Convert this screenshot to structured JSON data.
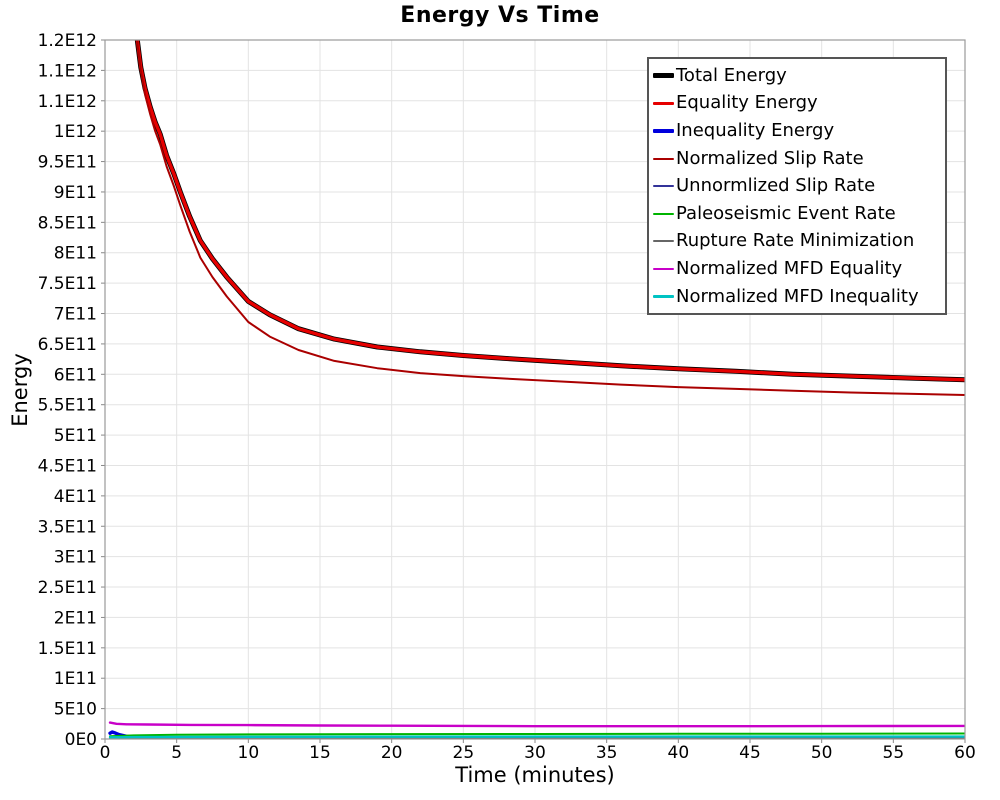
{
  "chart_data": {
    "type": "line",
    "title": "Energy Vs Time",
    "xlabel": "Time (minutes)",
    "ylabel": "Energy",
    "xlim": [
      0,
      60
    ],
    "ylim": [
      0,
      1150000000000.0
    ],
    "grid": true,
    "legend_position": "top-right",
    "x_ticks": [
      0,
      5,
      10,
      15,
      20,
      25,
      30,
      35,
      40,
      45,
      50,
      55,
      60
    ],
    "y_ticks": [
      {
        "label": "1.2E12",
        "value": 1150000000000.0
      },
      {
        "label": "1.1E12",
        "value": 1100000000000.0
      },
      {
        "label": "1.1E12",
        "value": 1050000000000.0
      },
      {
        "label": "1E12",
        "value": 1000000000000.0
      },
      {
        "label": "9.5E11",
        "value": 950000000000.0
      },
      {
        "label": "9E11",
        "value": 900000000000.0
      },
      {
        "label": "8.5E11",
        "value": 850000000000.0
      },
      {
        "label": "8E11",
        "value": 800000000000.0
      },
      {
        "label": "7.5E11",
        "value": 750000000000.0
      },
      {
        "label": "7E11",
        "value": 700000000000.0
      },
      {
        "label": "6.5E11",
        "value": 650000000000.0
      },
      {
        "label": "6E11",
        "value": 600000000000.0
      },
      {
        "label": "5.5E11",
        "value": 550000000000.0
      },
      {
        "label": "5E11",
        "value": 500000000000.0
      },
      {
        "label": "4.5E11",
        "value": 450000000000.0
      },
      {
        "label": "4E11",
        "value": 400000000000.0
      },
      {
        "label": "3.5E11",
        "value": 350000000000.0
      },
      {
        "label": "3E11",
        "value": 300000000000.0
      },
      {
        "label": "2.5E11",
        "value": 250000000000.0
      },
      {
        "label": "2E11",
        "value": 200000000000.0
      },
      {
        "label": "1.5E11",
        "value": 150000000000.0
      },
      {
        "label": "1E11",
        "value": 100000000000.0
      },
      {
        "label": "5E10",
        "value": 50000000000.0
      },
      {
        "label": "0E0",
        "value": 0
      }
    ],
    "series": [
      {
        "name": "Total Energy",
        "color": "#000000",
        "stroke_width": 5,
        "x": [
          2.0,
          2.25,
          2.5,
          2.8,
          3.15,
          3.5,
          3.85,
          4.3,
          4.8,
          5.25,
          5.9,
          6.65,
          7.5,
          8.5,
          10,
          11.5,
          13.5,
          16,
          19,
          22,
          25,
          28,
          32,
          36,
          40,
          44,
          48,
          52,
          56,
          60
        ],
        "y": [
          1350000000000.0,
          1150000000000.0,
          1105000000000.0,
          1070000000000.0,
          1040000000000.0,
          1015000000000.0,
          995000000000.0,
          960000000000.0,
          930000000000.0,
          900000000000.0,
          860000000000.0,
          820000000000.0,
          790000000000.0,
          760000000000.0,
          720000000000.0,
          698000000000.0,
          675000000000.0,
          658000000000.0,
          645000000000.0,
          637000000000.0,
          631000000000.0,
          626000000000.0,
          620000000000.0,
          614000000000.0,
          609000000000.0,
          605000000000.0,
          600000000000.0,
          597000000000.0,
          594000000000.0,
          591000000000.0
        ]
      },
      {
        "name": "Equality Energy",
        "color": "#e60000",
        "stroke_width": 3.4,
        "x": [
          2.0,
          2.25,
          2.5,
          2.8,
          3.15,
          3.5,
          3.85,
          4.3,
          4.8,
          5.25,
          5.9,
          6.65,
          7.5,
          8.5,
          10,
          11.5,
          13.5,
          16,
          19,
          22,
          25,
          28,
          32,
          36,
          40,
          44,
          48,
          52,
          56,
          60
        ],
        "y": [
          1350000000000.0,
          1150000000000.0,
          1105000000000.0,
          1070000000000.0,
          1040000000000.0,
          1015000000000.0,
          995000000000.0,
          960000000000.0,
          930000000000.0,
          900000000000.0,
          860000000000.0,
          820000000000.0,
          790000000000.0,
          760000000000.0,
          720000000000.0,
          698000000000.0,
          675000000000.0,
          658000000000.0,
          645000000000.0,
          637000000000.0,
          631000000000.0,
          626000000000.0,
          620000000000.0,
          614000000000.0,
          609000000000.0,
          605000000000.0,
          600000000000.0,
          597000000000.0,
          594000000000.0,
          591000000000.0
        ]
      },
      {
        "name": "Inequality Energy",
        "color": "#0000dd",
        "stroke_width": 3.4,
        "x": [
          0.35,
          0.5,
          0.7,
          1.0,
          1.5,
          2,
          3,
          4,
          6,
          10,
          20,
          40,
          60
        ],
        "y": [
          9500000000.0,
          11500000000.0,
          10000000000.0,
          7000000000.0,
          4500000000.0,
          3200000000.0,
          2200000000.0,
          1800000000.0,
          1500000000.0,
          1300000000.0,
          1200000000.0,
          1100000000.0,
          1100000000.0
        ]
      },
      {
        "name": "Normalized Slip Rate",
        "color": "#aa0000",
        "stroke_width": 2,
        "x": [
          2.0,
          2.25,
          2.5,
          2.8,
          3.15,
          3.5,
          3.85,
          4.3,
          4.8,
          5.25,
          5.9,
          6.65,
          7.5,
          8.5,
          10,
          11.5,
          13.5,
          16,
          19,
          22,
          25,
          28,
          32,
          36,
          40,
          44,
          48,
          52,
          56,
          60
        ],
        "y": [
          1345000000000.0,
          1145000000000.0,
          1100000000000.0,
          1060000000000.0,
          1028000000000.0,
          1000000000000.0,
          978000000000.0,
          942000000000.0,
          910000000000.0,
          878000000000.0,
          835000000000.0,
          792000000000.0,
          760000000000.0,
          728000000000.0,
          686000000000.0,
          662000000000.0,
          640000000000.0,
          622000000000.0,
          610000000000.0,
          602000000000.0,
          597000000000.0,
          593000000000.0,
          588000000000.0,
          583000000000.0,
          579000000000.0,
          576000000000.0,
          573000000000.0,
          570000000000.0,
          568000000000.0,
          566000000000.0
        ]
      },
      {
        "name": "Unnormlized Slip Rate",
        "color": "#333399",
        "stroke_width": 2,
        "x": [
          0.35,
          1,
          2,
          5,
          60
        ],
        "y": [
          1800000000.0,
          1000000000.0,
          700000000.0,
          600000000.0,
          500000000.0
        ]
      },
      {
        "name": "Paleoseismic Event Rate",
        "color": "#00b400",
        "stroke_width": 2,
        "x": [
          0.35,
          2,
          5,
          10,
          20,
          30,
          40,
          50,
          60
        ],
        "y": [
          4500000000.0,
          6000000000.0,
          7000000000.0,
          7500000000.0,
          8000000000.0,
          8300000000.0,
          8600000000.0,
          8800000000.0,
          9000000000.0
        ]
      },
      {
        "name": "Rupture Rate Minimization",
        "color": "#666666",
        "stroke_width": 2,
        "x": [
          0.35,
          1,
          2,
          60
        ],
        "y": [
          2500000000.0,
          1200000000.0,
          800000000.0,
          600000000.0
        ]
      },
      {
        "name": "Normalized MFD Equality",
        "color": "#c800c8",
        "stroke_width": 2.4,
        "x": [
          0.35,
          0.8,
          1.5,
          3,
          6,
          10,
          15,
          20,
          30,
          40,
          50,
          60
        ],
        "y": [
          27000000000.0,
          25000000000.0,
          24200000000.0,
          23800000000.0,
          23200000000.0,
          22800000000.0,
          22200000000.0,
          21800000000.0,
          21000000000.0,
          21000000000.0,
          21200000000.0,
          21500000000.0
        ]
      },
      {
        "name": "Normalized MFD Inequality",
        "color": "#00c3c3",
        "stroke_width": 2.4,
        "x": [
          0.35,
          2,
          10,
          30,
          60
        ],
        "y": [
          2800000000.0,
          3200000000.0,
          3600000000.0,
          3900000000.0,
          4000000000.0
        ]
      }
    ]
  }
}
